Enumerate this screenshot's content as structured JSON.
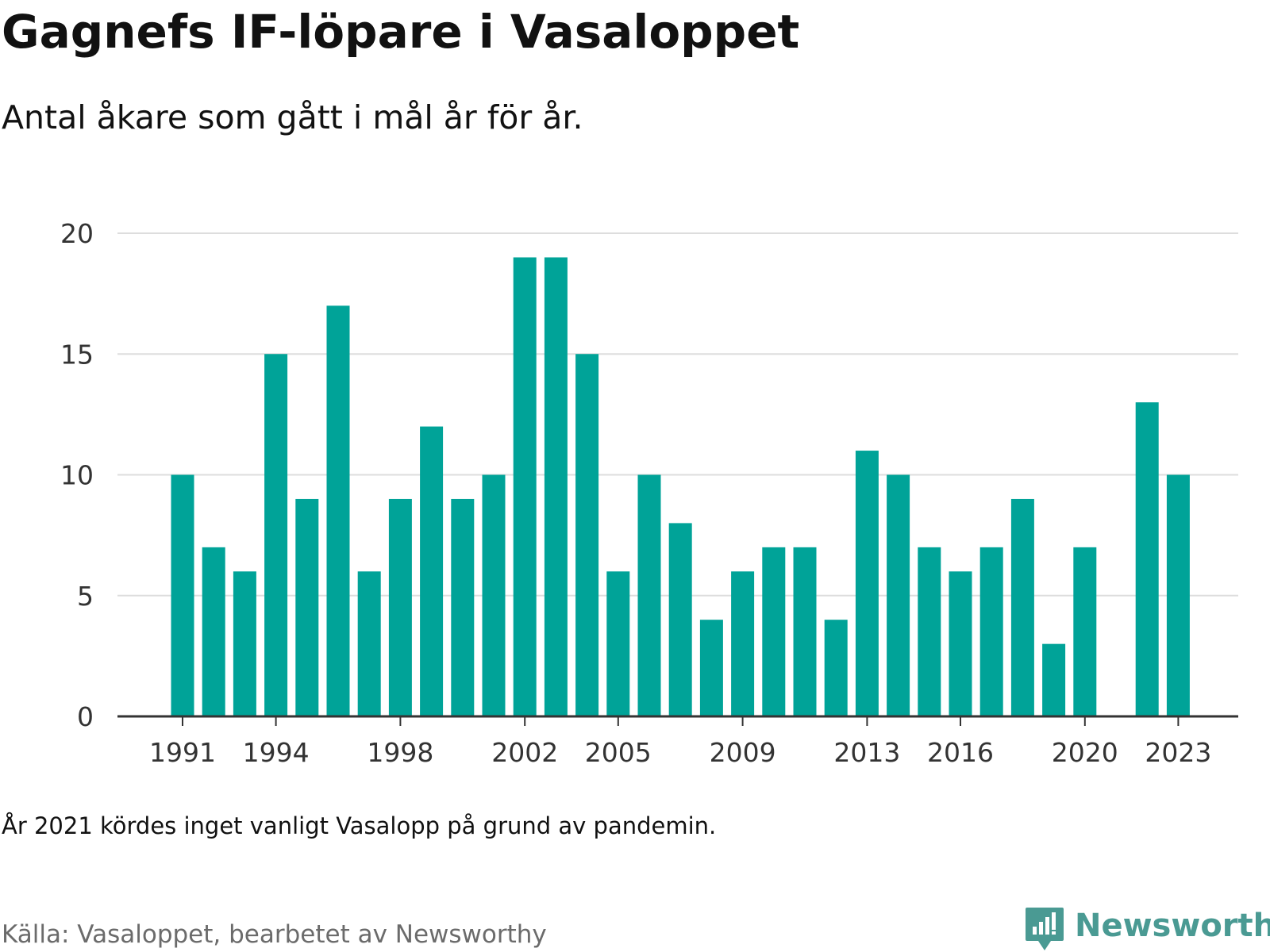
{
  "header": {
    "title": "Gagnefs IF-löpare i Vasaloppet",
    "subtitle": "Antal åkare som gått i mål år för år."
  },
  "footer": {
    "note": "År 2021 kördes inget vanligt Vasalopp på grund av pandemin.",
    "source": "Källa: Vasaloppet, bearbetet av Newsworthy",
    "brand": "Newsworthy",
    "brand_icon": "newsworthy-logo-icon"
  },
  "colors": {
    "bar": "#00a398",
    "grid": "#dddddd",
    "axis": "#333333",
    "brand": "#4a9a93"
  },
  "chart_data": {
    "type": "bar",
    "title": "Gagnefs IF-löpare i Vasaloppet",
    "subtitle": "Antal åkare som gått i mål år för år.",
    "xlabel": "",
    "ylabel": "",
    "ylim": [
      0,
      20
    ],
    "yticks": [
      "0",
      "5",
      "10",
      "15",
      "20"
    ],
    "grid": true,
    "legend": "none",
    "xtick_labels": [
      "1991",
      "1994",
      "1998",
      "2002",
      "2005",
      "2009",
      "2013",
      "2016",
      "2020",
      "2023"
    ],
    "categories": [
      "1991",
      "1992",
      "1993",
      "1994",
      "1995",
      "1996",
      "1997",
      "1998",
      "1999",
      "2000",
      "2001",
      "2002",
      "2003",
      "2004",
      "2005",
      "2006",
      "2007",
      "2008",
      "2009",
      "2010",
      "2011",
      "2012",
      "2013",
      "2014",
      "2015",
      "2016",
      "2017",
      "2018",
      "2019",
      "2020",
      "2021",
      "2022",
      "2023"
    ],
    "values": [
      10,
      7,
      6,
      15,
      9,
      17,
      6,
      9,
      12,
      9,
      10,
      19,
      19,
      15,
      6,
      10,
      8,
      4,
      6,
      7,
      7,
      4,
      11,
      10,
      7,
      6,
      7,
      9,
      3,
      7,
      null,
      13,
      10
    ]
  }
}
